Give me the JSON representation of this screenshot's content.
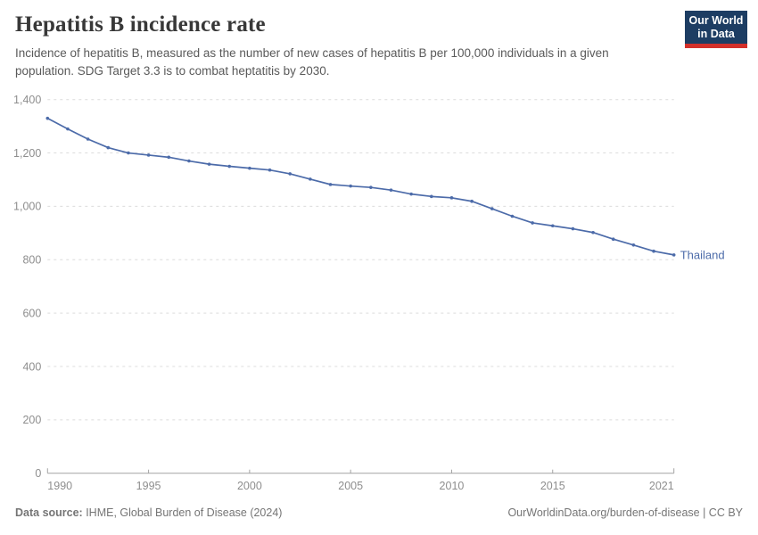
{
  "header": {
    "title": "Hepatitis B incidence rate",
    "subtitle": "Incidence of hepatitis B, measured as the number of new cases of hepatitis B per 100,000 individuals in a given population. SDG Target 3.3 is to combat heptatitis by 2030.",
    "logo": {
      "line1": "Our World",
      "line2": "in Data",
      "bg_color": "#1d3d63",
      "bar_color": "#d3302a"
    }
  },
  "chart_data": {
    "type": "line",
    "title": "Hepatitis B incidence rate",
    "xlabel": "",
    "ylabel": "",
    "xlim": [
      1990,
      2021
    ],
    "ylim": [
      0,
      1400
    ],
    "grid": "horizontal-dashed",
    "legend_position": "end-of-line",
    "x_ticks": [
      1990,
      1995,
      2000,
      2005,
      2010,
      2015,
      2021
    ],
    "y_ticks": [
      0,
      200,
      400,
      600,
      800,
      1000,
      1200,
      1400
    ],
    "series": [
      {
        "name": "Thailand",
        "color": "#4c6ba9",
        "x": [
          1990,
          1991,
          1992,
          1993,
          1994,
          1995,
          1996,
          1997,
          1998,
          1999,
          2000,
          2001,
          2002,
          2003,
          2004,
          2005,
          2006,
          2007,
          2008,
          2009,
          2010,
          2011,
          2012,
          2013,
          2014,
          2015,
          2016,
          2017,
          2018,
          2019,
          2020,
          2021
        ],
        "values": [
          1330,
          1290,
          1252,
          1220,
          1200,
          1192,
          1184,
          1170,
          1158,
          1150,
          1143,
          1136,
          1122,
          1102,
          1082,
          1076,
          1071,
          1061,
          1046,
          1037,
          1032,
          1019,
          991,
          963,
          938,
          927,
          916,
          902,
          877,
          855,
          832,
          818
        ]
      }
    ],
    "axis_color": "#a3a3a3",
    "grid_color": "#dcdcdc",
    "tick_label_color": "#8e8e8e"
  },
  "footer": {
    "source_label": "Data source:",
    "source_value": " IHME, Global Burden of Disease (2024)",
    "credit": "OurWorldinData.org/burden-of-disease | CC BY"
  }
}
